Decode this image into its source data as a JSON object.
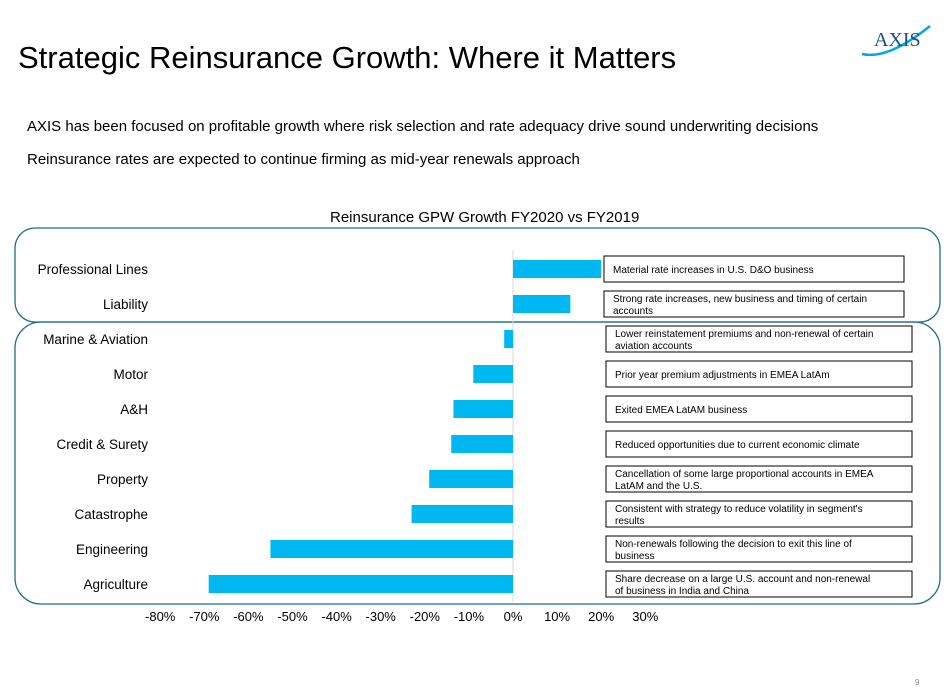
{
  "title": "Strategic Reinsurance Growth: Where it Matters",
  "logo_text": "AXIS",
  "bullets": [
    "AXIS  has  been focused  on profitable  growth where risk selection and rate adequacy drive sound underwriting decisions",
    "Reinsurance rates are expected to continue firming as mid-year renewals approach"
  ],
  "page_number": "9",
  "colors": {
    "bar": "#00B8F1",
    "frame": "#1F6E8C",
    "logo": "#1B4F8A",
    "logo_swoosh": "#00A9E0"
  },
  "chart_data": {
    "type": "bar",
    "orientation": "horizontal",
    "title": "Reinsurance GPW Growth FY2020 vs FY2019",
    "xlabel": "",
    "ylabel": "",
    "xlim": [
      -80,
      30
    ],
    "tick_labels": [
      "-80%",
      "-70%",
      "-60%",
      "-50%",
      "-40%",
      "-30%",
      "-20%",
      "-10%",
      "0%",
      "10%",
      "20%",
      "30%"
    ],
    "categories": [
      "Professional Lines",
      "Liability",
      "Marine & Aviation",
      "Motor",
      "A&H",
      "Credit & Surety",
      "Property",
      "Catastrophe",
      "Engineering",
      "Agriculture"
    ],
    "values": [
      20,
      13,
      -2,
      -9,
      -13.5,
      -14,
      -19,
      -23,
      -55,
      -69
    ],
    "annotations": [
      [
        "Material rate increases in U.S. D&O business"
      ],
      [
        "Strong rate increases, new business and timing of certain",
        "accounts"
      ],
      [
        "Lower reinstatement premiums and non-renewal of certain",
        "aviation accounts"
      ],
      [
        "Prior year premium adjustments in EMEA LatAm"
      ],
      [
        "Exited EMEA LatAM business"
      ],
      [
        "Reduced opportunities due to current economic climate"
      ],
      [
        "Cancellation of some large proportional accounts in EMEA",
        "LatAM and the U.S."
      ],
      [
        "Consistent with strategy to reduce volatility in segment's",
        "results"
      ],
      [
        "Non-renewals following the decision to exit this line of",
        "business"
      ],
      [
        "Share decrease on a large U.S. account and non-renewal",
        "of business in India and China"
      ]
    ],
    "groups": [
      {
        "members": [
          "Professional Lines",
          "Liability"
        ]
      },
      {
        "members": [
          "Marine & Aviation",
          "Motor",
          "A&H",
          "Credit & Surety",
          "Property",
          "Catastrophe",
          "Engineering",
          "Agriculture"
        ]
      }
    ]
  }
}
